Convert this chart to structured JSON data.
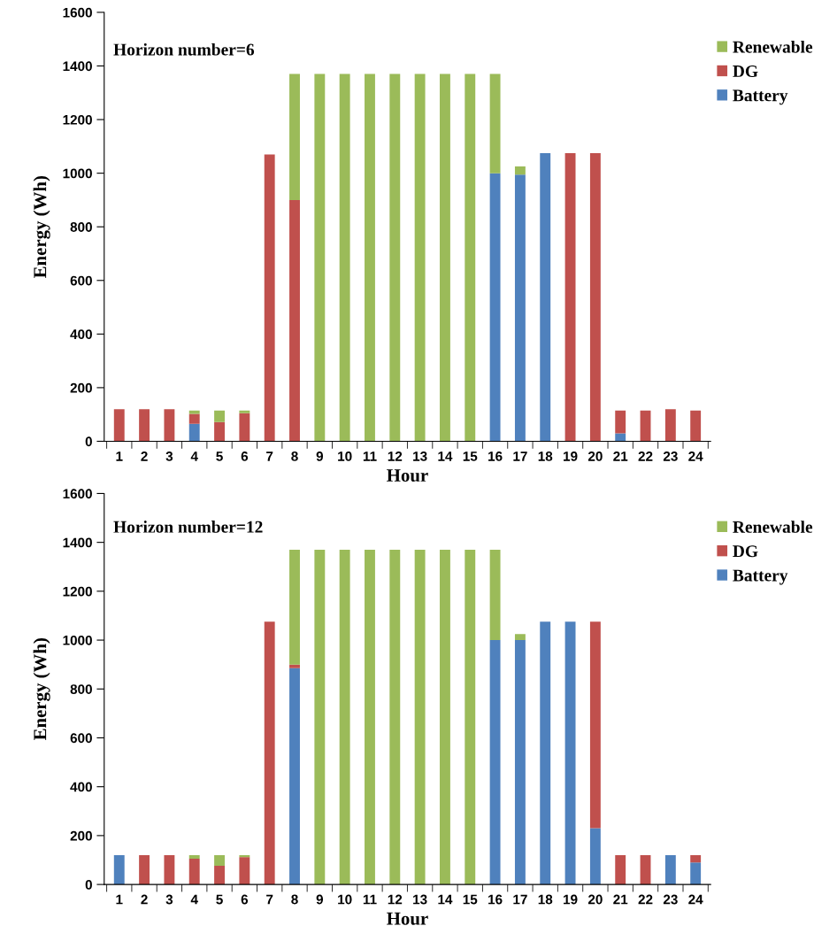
{
  "chart_data": [
    {
      "type": "bar",
      "stacked": true,
      "xlabel": "Hour",
      "ylabel": "Energy (Wh)",
      "annotations": [
        "Horizon number=6"
      ],
      "categories": [
        "1",
        "2",
        "3",
        "4",
        "5",
        "6",
        "7",
        "8",
        "9",
        "10",
        "11",
        "12",
        "13",
        "14",
        "15",
        "16",
        "17",
        "18",
        "19",
        "20",
        "21",
        "22",
        "23",
        "24"
      ],
      "ylim": [
        0,
        1600
      ],
      "yticks": [
        0,
        200,
        400,
        600,
        800,
        1000,
        1200,
        1400,
        1600
      ],
      "grid": false,
      "legend": "top right",
      "series": [
        {
          "name": "Battery",
          "color": "#4f81bd",
          "values": [
            0,
            0,
            0,
            65,
            0,
            0,
            0,
            0,
            0,
            0,
            0,
            0,
            0,
            0,
            0,
            1000,
            995,
            1075,
            0,
            0,
            30,
            0,
            0,
            0
          ]
        },
        {
          "name": "DG",
          "color": "#c0504d",
          "values": [
            120,
            120,
            120,
            37,
            72,
            105,
            1070,
            900,
            0,
            0,
            0,
            0,
            0,
            0,
            0,
            0,
            0,
            0,
            1075,
            1075,
            85,
            115,
            120,
            115
          ]
        },
        {
          "name": "Renewable",
          "color": "#9bbb59",
          "values": [
            0,
            0,
            0,
            13,
            43,
            10,
            0,
            470,
            1370,
            1370,
            1370,
            1370,
            1370,
            1370,
            1370,
            370,
            30,
            0,
            0,
            0,
            0,
            0,
            0,
            0
          ]
        }
      ]
    },
    {
      "type": "bar",
      "stacked": true,
      "xlabel": "Hour",
      "ylabel": "Energy (Wh)",
      "annotations": [
        "Horizon number=12"
      ],
      "categories": [
        "1",
        "2",
        "3",
        "4",
        "5",
        "6",
        "7",
        "8",
        "9",
        "10",
        "11",
        "12",
        "13",
        "14",
        "15",
        "16",
        "17",
        "18",
        "19",
        "20",
        "21",
        "22",
        "23",
        "24"
      ],
      "ylim": [
        0,
        1600
      ],
      "yticks": [
        0,
        200,
        400,
        600,
        800,
        1000,
        1200,
        1400,
        1600
      ],
      "grid": false,
      "legend": "top right",
      "series": [
        {
          "name": "Battery",
          "color": "#4f81bd",
          "values": [
            120,
            0,
            0,
            0,
            0,
            0,
            0,
            885,
            0,
            0,
            0,
            0,
            0,
            0,
            0,
            1000,
            1000,
            1075,
            1075,
            230,
            0,
            0,
            120,
            90
          ]
        },
        {
          "name": "DG",
          "color": "#c0504d",
          "values": [
            0,
            120,
            120,
            105,
            76,
            112,
            1075,
            15,
            0,
            0,
            0,
            0,
            0,
            0,
            0,
            0,
            0,
            0,
            0,
            845,
            120,
            120,
            0,
            30
          ]
        },
        {
          "name": "Renewable",
          "color": "#9bbb59",
          "values": [
            0,
            0,
            0,
            15,
            44,
            8,
            0,
            470,
            1370,
            1370,
            1370,
            1370,
            1370,
            1370,
            1370,
            370,
            25,
            0,
            0,
            0,
            0,
            0,
            0,
            0
          ]
        }
      ]
    }
  ]
}
